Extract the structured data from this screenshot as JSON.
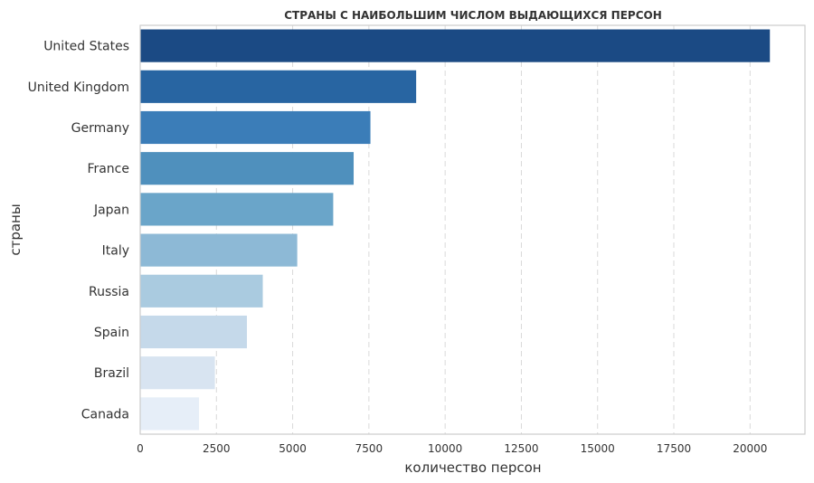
{
  "chart_data": {
    "type": "bar",
    "orientation": "horizontal",
    "title": "СТРАНЫ С НАИБОЛЬШИМ ЧИСЛОМ ВЫДАЮЩИХСЯ ПЕРСОН",
    "xlabel": "количество персон",
    "ylabel": "страны",
    "categories": [
      "United States",
      "United Kingdom",
      "Germany",
      "France",
      "Japan",
      "Italy",
      "Russia",
      "Spain",
      "Brazil",
      "Canada"
    ],
    "values": [
      20650,
      9050,
      7550,
      7000,
      6330,
      5150,
      4020,
      3500,
      2450,
      1930
    ],
    "colors": [
      "#1b4a84",
      "#2865a2",
      "#3b7db8",
      "#4f90bd",
      "#6aa5c9",
      "#8db9d6",
      "#aacbe0",
      "#c5d9ea",
      "#d8e4f1",
      "#e6eef8"
    ],
    "xlim": [
      0,
      21800
    ],
    "xticks": [
      0,
      2500,
      5000,
      7500,
      10000,
      12500,
      15000,
      17500,
      20000
    ],
    "xtick_labels": [
      "0",
      "2500",
      "5000",
      "7500",
      "10000",
      "12500",
      "15000",
      "17500",
      "20000"
    ],
    "grid": "vertical dashed",
    "legend": "none"
  }
}
